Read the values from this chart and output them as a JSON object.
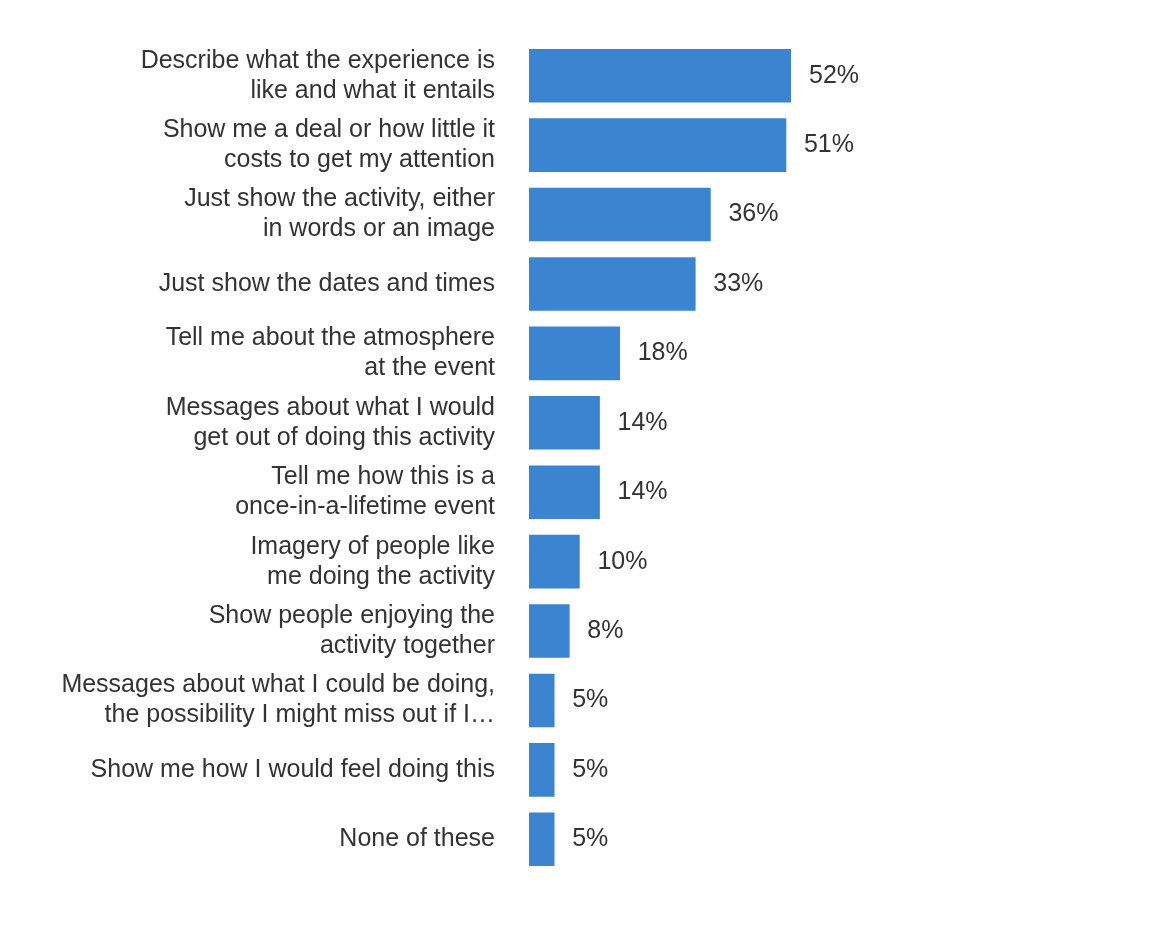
{
  "chart_data": {
    "type": "bar",
    "orientation": "horizontal",
    "categories": [
      "Describe what the experience is\nlike and what it entails",
      "Show me a deal or how little it\ncosts to get my attention",
      "Just show the activity, either\nin words or an image",
      "Just show the dates and times",
      "Tell me about the atmosphere\nat the event",
      "Messages about what I would\nget out of doing this activity",
      "Tell me how this is a\nonce-in-a-lifetime event",
      "Imagery of people like\nme doing the activity",
      "Show people enjoying the\nactivity together",
      "Messages about what I could be doing,\nthe possibility I might miss out if I…",
      "Show me how I would feel doing this",
      "None of these"
    ],
    "values": [
      52,
      51,
      36,
      33,
      18,
      14,
      14,
      10,
      8,
      5,
      5,
      5
    ],
    "value_labels": [
      "52%",
      "51%",
      "36%",
      "33%",
      "18%",
      "14%",
      "14%",
      "10%",
      "8%",
      "5%",
      "5%",
      "5%"
    ],
    "color": "#3a84d2",
    "grid": false,
    "legend": false
  }
}
